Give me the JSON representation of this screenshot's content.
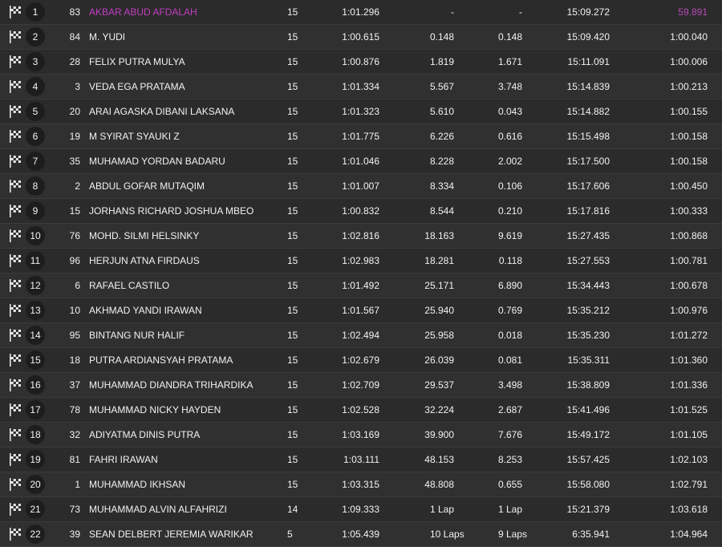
{
  "classification": {
    "rows": [
      {
        "pos": "1",
        "number": "83",
        "name": "AKBAR ABUD AFDALAH",
        "laps": "15",
        "best": "1:01.296",
        "gap": "-",
        "diff": "-",
        "total": "15:09.272",
        "best_lap": "59.891"
      },
      {
        "pos": "2",
        "number": "84",
        "name": "M. YUDI",
        "laps": "15",
        "best": "1:00.615",
        "gap": "0.148",
        "diff": "0.148",
        "total": "15:09.420",
        "best_lap": "1:00.040"
      },
      {
        "pos": "3",
        "number": "28",
        "name": "FELIX PUTRA MULYA",
        "laps": "15",
        "best": "1:00.876",
        "gap": "1.819",
        "diff": "1.671",
        "total": "15:11.091",
        "best_lap": "1:00.006"
      },
      {
        "pos": "4",
        "number": "3",
        "name": "VEDA EGA PRATAMA",
        "laps": "15",
        "best": "1:01.334",
        "gap": "5.567",
        "diff": "3.748",
        "total": "15:14.839",
        "best_lap": "1:00.213"
      },
      {
        "pos": "5",
        "number": "20",
        "name": "ARAI AGASKA DIBANI LAKSANA",
        "laps": "15",
        "best": "1:01.323",
        "gap": "5.610",
        "diff": "0.043",
        "total": "15:14.882",
        "best_lap": "1:00.155"
      },
      {
        "pos": "6",
        "number": "19",
        "name": "M SYIRAT SYAUKI Z",
        "laps": "15",
        "best": "1:01.775",
        "gap": "6.226",
        "diff": "0.616",
        "total": "15:15.498",
        "best_lap": "1:00.158"
      },
      {
        "pos": "7",
        "number": "35",
        "name": "MUHAMAD YORDAN BADARU",
        "laps": "15",
        "best": "1:01.046",
        "gap": "8.228",
        "diff": "2.002",
        "total": "15:17.500",
        "best_lap": "1:00.158"
      },
      {
        "pos": "8",
        "number": "2",
        "name": "ABDUL GOFAR MUTAQIM",
        "laps": "15",
        "best": "1:01.007",
        "gap": "8.334",
        "diff": "0.106",
        "total": "15:17.606",
        "best_lap": "1:00.450"
      },
      {
        "pos": "9",
        "number": "15",
        "name": "JORHANS RICHARD JOSHUA MBEO",
        "laps": "15",
        "best": "1:00.832",
        "gap": "8.544",
        "diff": "0.210",
        "total": "15:17.816",
        "best_lap": "1:00.333"
      },
      {
        "pos": "10",
        "number": "76",
        "name": "MOHD. SILMI HELSINKY",
        "laps": "15",
        "best": "1:02.816",
        "gap": "18.163",
        "diff": "9.619",
        "total": "15:27.435",
        "best_lap": "1:00.868"
      },
      {
        "pos": "11",
        "number": "96",
        "name": "HERJUN ATNA FIRDAUS",
        "laps": "15",
        "best": "1:02.983",
        "gap": "18.281",
        "diff": "0.118",
        "total": "15:27.553",
        "best_lap": "1:00.781"
      },
      {
        "pos": "12",
        "number": "6",
        "name": "RAFAEL CASTILO",
        "laps": "15",
        "best": "1:01.492",
        "gap": "25.171",
        "diff": "6.890",
        "total": "15:34.443",
        "best_lap": "1:00.678"
      },
      {
        "pos": "13",
        "number": "10",
        "name": "AKHMAD YANDI IRAWAN",
        "laps": "15",
        "best": "1:01.567",
        "gap": "25.940",
        "diff": "0.769",
        "total": "15:35.212",
        "best_lap": "1:00.976"
      },
      {
        "pos": "14",
        "number": "95",
        "name": "BINTANG NUR HALIF",
        "laps": "15",
        "best": "1:02.494",
        "gap": "25.958",
        "diff": "0.018",
        "total": "15:35.230",
        "best_lap": "1:01.272"
      },
      {
        "pos": "15",
        "number": "18",
        "name": "PUTRA ARDIANSYAH PRATAMA",
        "laps": "15",
        "best": "1:02.679",
        "gap": "26.039",
        "diff": "0.081",
        "total": "15:35.311",
        "best_lap": "1:01.360"
      },
      {
        "pos": "16",
        "number": "37",
        "name": "MUHAMMAD DIANDRA TRIHARDIKA",
        "laps": "15",
        "best": "1:02.709",
        "gap": "29.537",
        "diff": "3.498",
        "total": "15:38.809",
        "best_lap": "1:01.336"
      },
      {
        "pos": "17",
        "number": "78",
        "name": "MUHAMMAD NICKY HAYDEN",
        "laps": "15",
        "best": "1:02.528",
        "gap": "32.224",
        "diff": "2.687",
        "total": "15:41.496",
        "best_lap": "1:01.525"
      },
      {
        "pos": "18",
        "number": "32",
        "name": "ADIYATMA DINIS PUTRA",
        "laps": "15",
        "best": "1:03.169",
        "gap": "39.900",
        "diff": "7.676",
        "total": "15:49.172",
        "best_lap": "1:01.105"
      },
      {
        "pos": "19",
        "number": "81",
        "name": "FAHRI IRAWAN",
        "laps": "15",
        "best": "1:03.111",
        "gap": "48.153",
        "diff": "8.253",
        "total": "15:57.425",
        "best_lap": "1:02.103"
      },
      {
        "pos": "20",
        "number": "1",
        "name": "MUHAMMAD IKHSAN",
        "laps": "15",
        "best": "1:03.315",
        "gap": "48.808",
        "diff": "0.655",
        "total": "15:58.080",
        "best_lap": "1:02.791"
      },
      {
        "pos": "21",
        "number": "73",
        "name": "MUHAMMAD ALVIN ALFAHRIZI",
        "laps": "14",
        "best": "1:09.333",
        "gap": "1 Lap",
        "diff": "1 Lap",
        "total": "15:21.379",
        "best_lap": "1:03.618"
      },
      {
        "pos": "22",
        "number": "39",
        "name": "SEAN DELBERT JEREMIA WARIKAR",
        "laps": "5",
        "best": "1:05.439",
        "gap": "10 Laps",
        "diff": "9 Laps",
        "total": "6:35.941",
        "best_lap": "1:04.964"
      }
    ]
  },
  "icons": {
    "finish_flag": "checkered-flag-icon"
  },
  "colors": {
    "background": "#2b2b2b",
    "text": "#f2f2f2",
    "leader_highlight": "#c13dc1",
    "position_badge": "#1d1d1d"
  }
}
